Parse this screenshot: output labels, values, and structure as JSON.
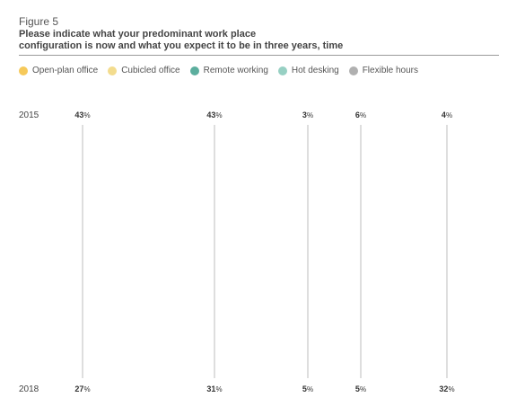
{
  "figure_label": "Figure 5",
  "title_line1": "Please indicate what your predominant work place",
  "title_line2": "configuration is now and what you expect it to be in three years, time",
  "chart_data": {
    "type": "slope",
    "categories": [
      "2015",
      "2018"
    ],
    "series": [
      {
        "name": "Open-plan office",
        "color": "#f6c95a",
        "values": [
          43,
          27
        ]
      },
      {
        "name": "Cubicled office",
        "color": "#f3dc8e",
        "values": [
          43,
          31
        ]
      },
      {
        "name": "Remote working",
        "color": "#5cae9e",
        "values": [
          3,
          5
        ]
      },
      {
        "name": "Hot desking",
        "color": "#97d0c3",
        "values": [
          6,
          5
        ]
      },
      {
        "name": "Flexible hours",
        "color": "#b0b0b0",
        "values": [
          4,
          32
        ]
      }
    ],
    "value_suffix": "%"
  }
}
